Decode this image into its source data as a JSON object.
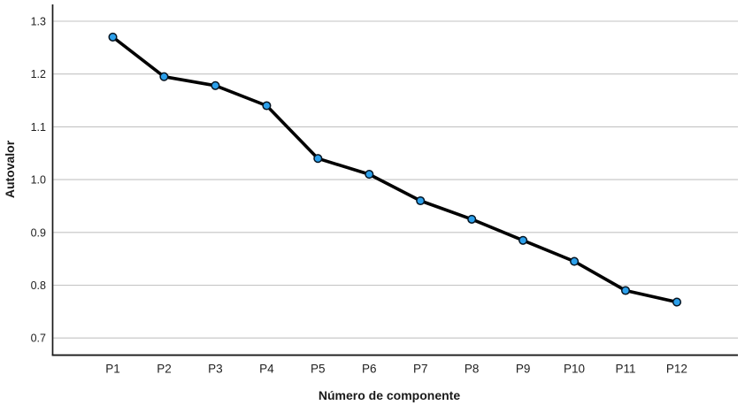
{
  "chart_data": {
    "type": "line",
    "title": "",
    "xlabel": "Número de componente",
    "ylabel": "Autovalor",
    "categories": [
      "P1",
      "P2",
      "P3",
      "P4",
      "P5",
      "P6",
      "P7",
      "P8",
      "P9",
      "P10",
      "P11",
      "P12"
    ],
    "values": [
      1.27,
      1.195,
      1.178,
      1.14,
      1.04,
      1.01,
      0.96,
      0.925,
      0.885,
      0.845,
      0.79,
      0.768
    ],
    "yticks": [
      0.7,
      0.8,
      0.9,
      1.0,
      1.1,
      1.2,
      1.3
    ],
    "ytick_labels": [
      "0.7",
      "0.8",
      "0.9",
      "1.0",
      "1.1",
      "1.2",
      "1.3"
    ],
    "ylim": [
      0.67,
      1.33
    ],
    "grid": "horizontal-only",
    "legend": "none",
    "colors": {
      "line": "#000000",
      "marker_fill": "#2CA0EB",
      "marker_stroke": "#051422",
      "gridline": "#c3c3c3",
      "axis": "#1a1a1a",
      "text": "#1f1f1f",
      "background": "#ffffff"
    }
  }
}
